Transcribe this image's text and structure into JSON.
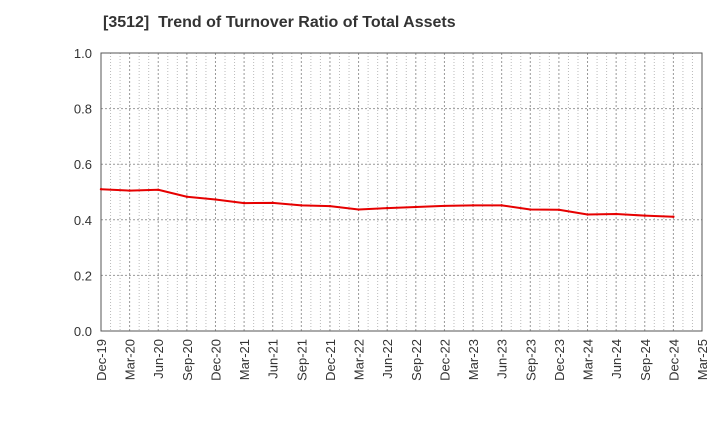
{
  "chart_data": {
    "type": "line",
    "title": "[3512]  Trend of Turnover Ratio of Total Assets",
    "xlabel": "",
    "ylabel": "",
    "ylim": [
      0.0,
      1.0
    ],
    "yticks": [
      "0.0",
      "0.2",
      "0.4",
      "0.6",
      "0.8",
      "1.0"
    ],
    "x_tick_labels": [
      "Dec-19",
      "Mar-20",
      "Jun-20",
      "Sep-20",
      "Dec-20",
      "Mar-21",
      "Jun-21",
      "Sep-21",
      "Dec-21",
      "Mar-22",
      "Jun-22",
      "Sep-22",
      "Dec-22",
      "Mar-23",
      "Jun-23",
      "Sep-23",
      "Dec-23",
      "Mar-24",
      "Jun-24",
      "Sep-24",
      "Dec-24",
      "Mar-25"
    ],
    "grid": "dotted",
    "legend": "none",
    "series": [
      {
        "color": "#e60000",
        "x": [
          "Dec-19",
          "Mar-20",
          "Jun-20",
          "Sep-20",
          "Dec-20",
          "Mar-21",
          "Jun-21",
          "Sep-21",
          "Dec-21",
          "Mar-22",
          "Jun-22",
          "Sep-22",
          "Dec-22",
          "Mar-23",
          "Jun-23",
          "Sep-23",
          "Dec-23",
          "Mar-24",
          "Jun-24",
          "Sep-24",
          "Dec-24"
        ],
        "values": [
          0.51,
          0.505,
          0.508,
          0.483,
          0.473,
          0.46,
          0.461,
          0.452,
          0.449,
          0.437,
          0.442,
          0.446,
          0.45,
          0.452,
          0.452,
          0.437,
          0.436,
          0.419,
          0.421,
          0.415,
          0.411
        ]
      }
    ]
  }
}
